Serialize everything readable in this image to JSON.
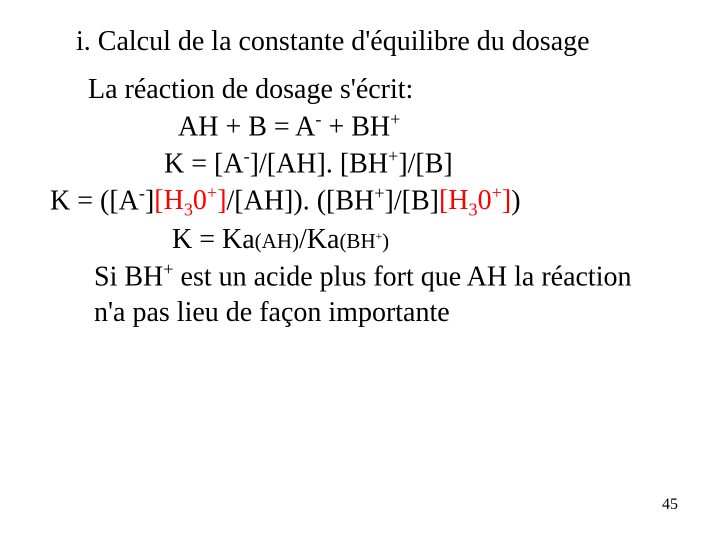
{
  "title": "i. Calcul de la constante d'équilibre du dosage",
  "line1": "La réaction de dosage s'écrit:",
  "eq1_pre": "AH + B = A",
  "eq1_supA": "-",
  "eq1_mid": " + BH",
  "eq1_supB": "+",
  "eq2_a": "K = [A",
  "eq2_supA": "-",
  "eq2_b": "]/[AH]. [BH",
  "eq2_supB": "+",
  "eq2_c": "]/[B]",
  "eq3_a": "K = ([A",
  "eq3_supA": "-",
  "eq3_b": "]",
  "eq3_red1a": "[H",
  "eq3_red1sub": "3",
  "eq3_red1b": "0",
  "eq3_red1sup": "+",
  "eq3_red1c": "]",
  "eq3_c": "/[AH]). ([BH",
  "eq3_supB": "+",
  "eq3_d": "]/[B]",
  "eq3_red2a": "[H",
  "eq3_red2sub": "3",
  "eq3_red2b": "0",
  "eq3_red2sup": "+",
  "eq3_red2c": "]",
  "eq3_e": ")",
  "eq4_a": "K = Ka",
  "eq4_sub1": "(AH)",
  "eq4_b": "/Ka",
  "eq4_sub2a": "(BH",
  "eq4_sub2sup": "+",
  "eq4_sub2b": ")",
  "concl_a": "Si BH",
  "concl_sup": "+",
  "concl_b": " est un acide plus fort que AH la réaction n'a pas lieu de façon importante",
  "pagenum": "45",
  "colors": {
    "text": "#000000",
    "accent": "#ff0000",
    "background": "#ffffff"
  }
}
